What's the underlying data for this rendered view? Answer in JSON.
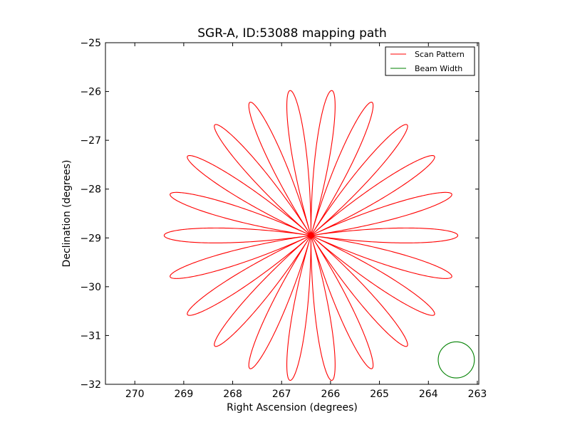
{
  "chart_data": {
    "type": "line",
    "title": "SGR-A, ID:53088 mapping path",
    "xlabel": "Right Ascension (degrees)",
    "ylabel": "Declination (degrees)",
    "xlim": [
      270.6,
      262.97
    ],
    "ylim": [
      -32,
      -25
    ],
    "xticks": [
      270,
      269,
      268,
      267,
      266,
      265,
      264,
      263
    ],
    "yticks": [
      -25,
      -26,
      -27,
      -28,
      -29,
      -30,
      -31,
      -32
    ],
    "xtick_labels": [
      "270",
      "269",
      "268",
      "267",
      "266",
      "265",
      "264",
      "263"
    ],
    "ytick_labels": [
      "−25",
      "−26",
      "−27",
      "−28",
      "−29",
      "−30",
      "−31",
      "−32"
    ],
    "grid": false,
    "legend_position": "top-right",
    "series": [
      {
        "name": "Scan Pattern",
        "color": "#ff0000",
        "kind": "rose-curve",
        "center": [
          266.4,
          -28.95
        ],
        "petals": 22,
        "radius_deg": 3.0,
        "petal_width_factor": 0.11
      },
      {
        "name": "Beam Width",
        "color": "#008000",
        "kind": "circle",
        "center": [
          263.43,
          -31.5
        ],
        "radius_deg": 0.37
      }
    ]
  }
}
